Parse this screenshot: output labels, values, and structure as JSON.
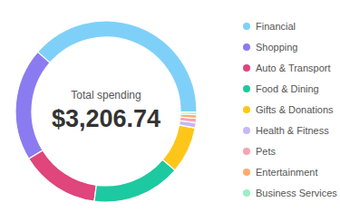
{
  "chart_data": {
    "type": "donut",
    "center_text": {
      "title": "Total spending",
      "value_label": "$3,206.74"
    },
    "categories": [
      "Financial",
      "Shopping",
      "Auto & Transport",
      "Food & Dining",
      "Gifts & Donations",
      "Health & Fitness",
      "Pets",
      "Entertainment",
      "Business Services"
    ],
    "values": [
      1242.74,
      646,
      454,
      508,
      267,
      30,
      25,
      20,
      14
    ],
    "colors": [
      "#7fd0f9",
      "#8a7cf0",
      "#e0457b",
      "#1dc9a0",
      "#ffc61a",
      "#c9b8f5",
      "#f9a3b0",
      "#ffab70",
      "#98f0c4"
    ]
  }
}
